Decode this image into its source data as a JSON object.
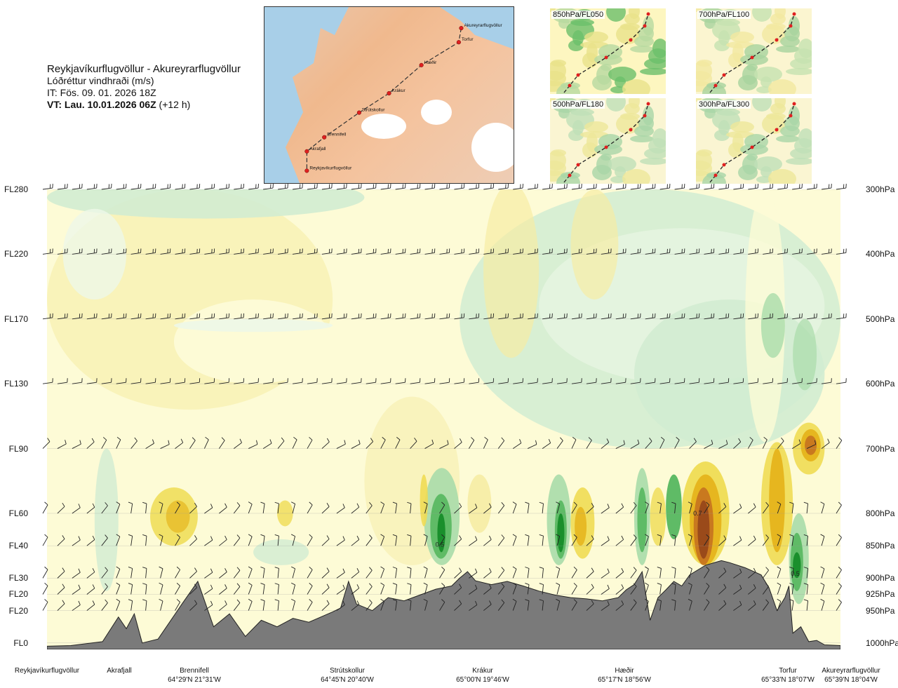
{
  "title": {
    "route": "Reykjavíkurflugvöllur - Akureyrarflugvöllur",
    "variable": "Lóðréttur vindhraði (m/s)",
    "issue_time": "IT: Fös. 09. 01. 2026 18Z",
    "valid_time_bold": "VT: Lau. 10.01.2026 06Z",
    "valid_time_offset": "(+12 h)"
  },
  "route_map": {
    "points": [
      {
        "name": "Akureyrarflugvöllur",
        "fx": 0.79,
        "fy": 0.12
      },
      {
        "name": "Torfur",
        "fx": 0.78,
        "fy": 0.2
      },
      {
        "name": "Hæðir",
        "fx": 0.63,
        "fy": 0.33
      },
      {
        "name": "Krákur",
        "fx": 0.5,
        "fy": 0.49
      },
      {
        "name": "Strútskollur",
        "fx": 0.38,
        "fy": 0.6
      },
      {
        "name": "Brennifell",
        "fx": 0.24,
        "fy": 0.74
      },
      {
        "name": "Akrafjall",
        "fx": 0.17,
        "fy": 0.82
      },
      {
        "name": "Reykjavíkurflugvöllur",
        "fx": 0.17,
        "fy": 0.93
      }
    ]
  },
  "insets": [
    {
      "label": "850hPa/FL050"
    },
    {
      "label": "700hPa/FL100"
    },
    {
      "label": "500hPa/FL180"
    },
    {
      "label": "300hPa/FL300"
    }
  ],
  "chart_data": {
    "type": "heatmap",
    "title": "Lóðréttur vindhraði (m/s)",
    "flight_levels": [
      {
        "fl": "FL280",
        "hpa": "300hPa",
        "p": 300
      },
      {
        "fl": "FL220",
        "hpa": "400hPa",
        "p": 400
      },
      {
        "fl": "FL170",
        "hpa": "500hPa",
        "p": 500
      },
      {
        "fl": "FL130",
        "hpa": "600hPa",
        "p": 600
      },
      {
        "fl": "FL90",
        "hpa": "700hPa",
        "p": 700
      },
      {
        "fl": "FL60",
        "hpa": "800hPa",
        "p": 800
      },
      {
        "fl": "FL40",
        "hpa": "850hPa",
        "p": 850
      },
      {
        "fl": "FL30",
        "hpa": "900hPa",
        "p": 900
      },
      {
        "fl": "FL20",
        "hpa": "925hPa",
        "p": 925
      },
      {
        "fl": "FL20",
        "hpa": "950hPa",
        "p": 950
      },
      {
        "fl": "FL0",
        "hpa": "1000hPa",
        "p": 1000
      }
    ],
    "stations": [
      {
        "name": "Reykjavíkurflugvöllur",
        "coord": "",
        "d": 0.0
      },
      {
        "name": "Akrafjall",
        "coord": "",
        "d": 0.1
      },
      {
        "name": "Brennifell",
        "coord": "64°29'N 21°31'W",
        "d": 0.19
      },
      {
        "name": "Strútskollur",
        "coord": "64°45'N 20°40'W",
        "d": 0.38
      },
      {
        "name": "Krákur",
        "coord": "65°00'N 19°46'W",
        "d": 0.56
      },
      {
        "name": "Hæðir",
        "coord": "65°17'N 18°56'W",
        "d": 0.74
      },
      {
        "name": "Torfur",
        "coord": "65°33'N 18°07'W",
        "d": 0.94
      },
      {
        "name": "Akureyrarflugvöllur",
        "coord": "65°39'N 18°04'W",
        "d": 1.0
      }
    ],
    "contour_labels": [
      {
        "text": "0.5",
        "d": 0.495,
        "p": 848
      },
      {
        "text": "0.7",
        "d": 0.82,
        "p": 800
      },
      {
        "text": "0.5",
        "d": 0.943,
        "p": 893
      }
    ],
    "color_scale": {
      "downward_strong": "#1a8f2c",
      "downward_mid": "#5fbb66",
      "downward_weak": "#a9dcaa",
      "downward_light": "#d1ecd2",
      "neutral_down": "#edf7e8",
      "neutral_up": "#fdfbd6",
      "upward_light": "#f6eca4",
      "upward_weak": "#efdc54",
      "upward_mid": "#e6b61f",
      "upward_strong": "#c9791f",
      "upward_max": "#9a4a1a",
      "terrain": "#7a7a7a"
    }
  }
}
